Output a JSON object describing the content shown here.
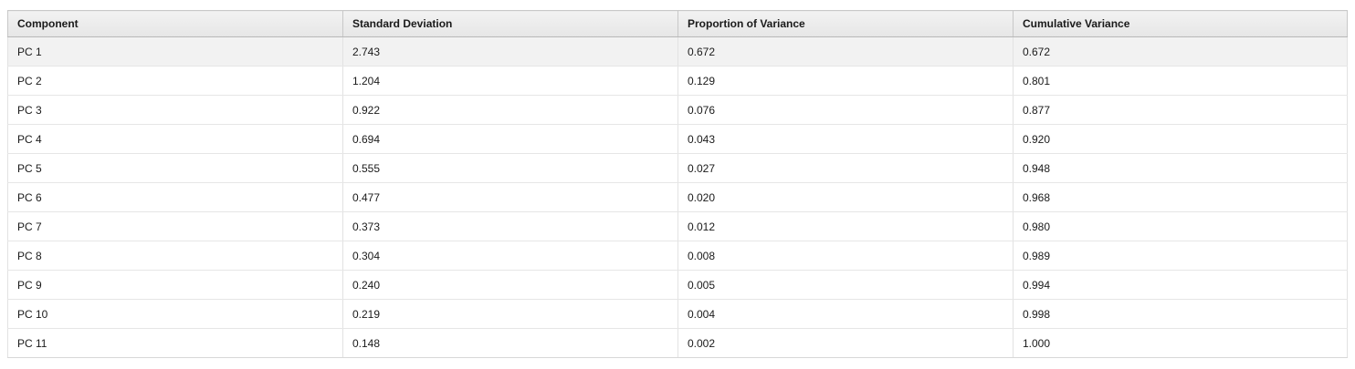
{
  "table": {
    "columns": [
      "Component",
      "Standard Deviation",
      "Proportion of Variance",
      "Cumulative Variance"
    ],
    "rows": [
      [
        "PC 1",
        "2.743",
        "0.672",
        "0.672"
      ],
      [
        "PC 2",
        "1.204",
        "0.129",
        "0.801"
      ],
      [
        "PC 3",
        "0.922",
        "0.076",
        "0.877"
      ],
      [
        "PC 4",
        "0.694",
        "0.043",
        "0.920"
      ],
      [
        "PC 5",
        "0.555",
        "0.027",
        "0.948"
      ],
      [
        "PC 6",
        "0.477",
        "0.020",
        "0.968"
      ],
      [
        "PC 7",
        "0.373",
        "0.012",
        "0.980"
      ],
      [
        "PC 8",
        "0.304",
        "0.008",
        "0.989"
      ],
      [
        "PC 9",
        "0.240",
        "0.005",
        "0.994"
      ],
      [
        "PC 10",
        "0.219",
        "0.004",
        "0.998"
      ],
      [
        "PC 11",
        "0.148",
        "0.002",
        "1.000"
      ]
    ]
  }
}
